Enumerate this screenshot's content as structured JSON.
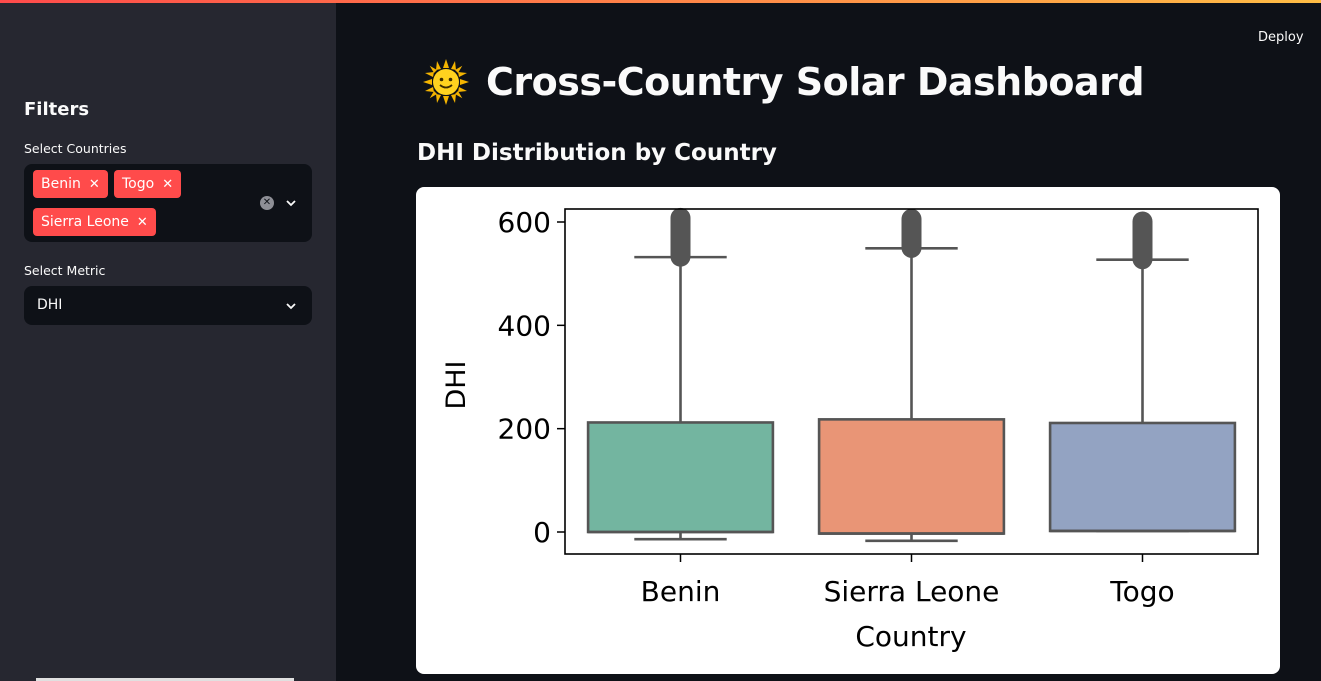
{
  "sidebar": {
    "heading": "Filters",
    "countries_label": "Select Countries",
    "selected_countries": [
      "Benin",
      "Togo",
      "Sierra Leone"
    ],
    "metric_label": "Select Metric",
    "metric_value": "DHI"
  },
  "header": {
    "deploy_label": "Deploy",
    "title": "Cross-Country Solar Dashboard",
    "title_icon": "sun-icon"
  },
  "main": {
    "subtitle": "DHI Distribution by Country"
  },
  "colors": {
    "accent": "#ff4b4b",
    "benin": "#73b5a0",
    "sierra_leone": "#e99576",
    "togo": "#93a3c2"
  },
  "chart_data": {
    "type": "box",
    "categories": [
      "Benin",
      "Sierra Leone",
      "Togo"
    ],
    "xlabel": "Country",
    "ylabel": "DHI",
    "ylim": [
      -40,
      625
    ],
    "yticks": [
      0,
      200,
      400,
      600
    ],
    "series": [
      {
        "category": "Benin",
        "q1": 0,
        "median": 0,
        "q3": 212,
        "whisker_low": -14,
        "whisker_high": 532,
        "outlier_min": 533,
        "outlier_max": 608,
        "color": "#73b5a0"
      },
      {
        "category": "Sierra Leone",
        "q1": -3,
        "median": -3,
        "q3": 218,
        "whisker_low": -17,
        "whisker_high": 549,
        "outlier_min": 550,
        "outlier_max": 606,
        "color": "#e99576"
      },
      {
        "category": "Togo",
        "q1": 2,
        "median": 2,
        "q3": 211,
        "whisker_low": 2,
        "whisker_high": 527,
        "outlier_min": 528,
        "outlier_max": 601,
        "color": "#93a3c2"
      }
    ]
  }
}
